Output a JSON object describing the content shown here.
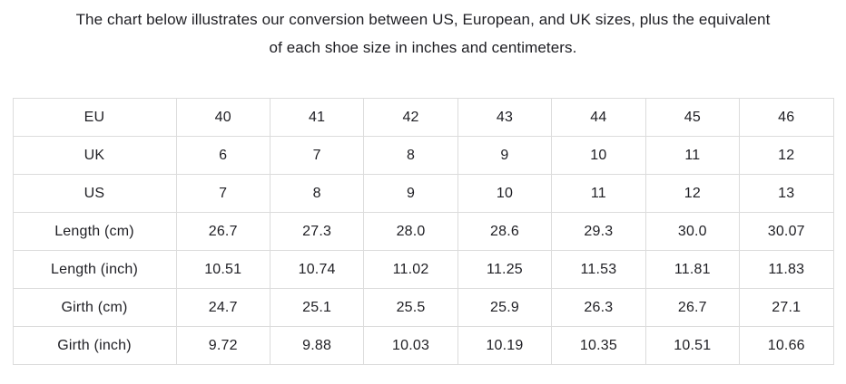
{
  "header": {
    "line1": "The chart below illustrates our conversion between US, European, and UK sizes, plus the equivalent",
    "line2": "of each shoe size in inches and centimeters."
  },
  "chart_data": {
    "type": "table",
    "title": "The chart below illustrates our conversion between US, European, and UK sizes, plus the equivalent of each shoe size in inches and centimeters.",
    "rows": [
      {
        "label": "EU",
        "values": [
          "40",
          "41",
          "42",
          "43",
          "44",
          "45",
          "46"
        ]
      },
      {
        "label": "UK",
        "values": [
          "6",
          "7",
          "8",
          "9",
          "10",
          "11",
          "12"
        ]
      },
      {
        "label": "US",
        "values": [
          "7",
          "8",
          "9",
          "10",
          "11",
          "12",
          "13"
        ]
      },
      {
        "label": "Length (cm)",
        "values": [
          "26.7",
          "27.3",
          "28.0",
          "28.6",
          "29.3",
          "30.0",
          "30.07"
        ]
      },
      {
        "label": "Length (inch)",
        "values": [
          "10.51",
          "10.74",
          "11.02",
          "11.25",
          "11.53",
          "11.81",
          "11.83"
        ]
      },
      {
        "label": "Girth (cm)",
        "values": [
          "24.7",
          "25.1",
          "25.5",
          "25.9",
          "26.3",
          "26.7",
          "27.1"
        ]
      },
      {
        "label": "Girth (inch)",
        "values": [
          "9.72",
          "9.88",
          "10.03",
          "10.19",
          "10.35",
          "10.51",
          "10.66"
        ]
      }
    ]
  },
  "colors": {
    "text": "#1e1e23",
    "table_border": "#dcdcdc",
    "background": "#ffffff"
  }
}
